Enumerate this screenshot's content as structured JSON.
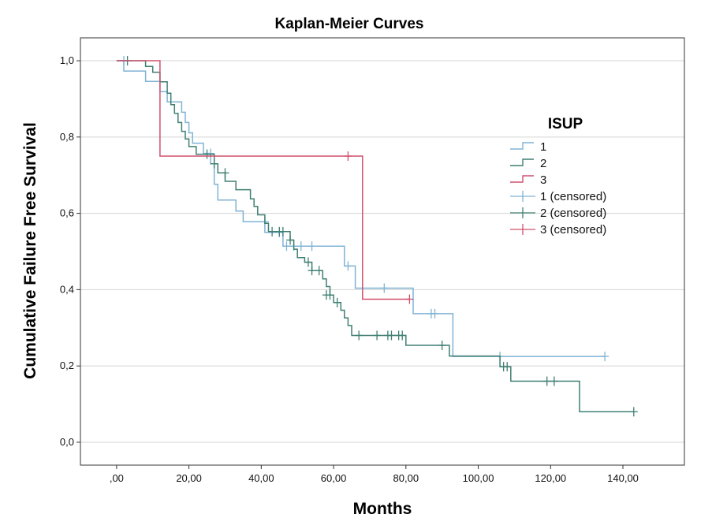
{
  "chart_data": {
    "type": "line",
    "step": true,
    "title": "Kaplan-Meier Curves",
    "xlabel": "Months",
    "ylabel": "Cumulative Failure Free Survival",
    "xlim": [
      -10,
      157
    ],
    "ylim": [
      -0.06,
      1.06
    ],
    "x_ticks": [
      0,
      20,
      40,
      60,
      80,
      100,
      120,
      140
    ],
    "x_tick_labels": [
      ",00",
      "20,00",
      "40,00",
      "60,00",
      "80,00",
      "100,00",
      "120,00",
      "140,00"
    ],
    "y_ticks": [
      0,
      0.2,
      0.4,
      0.6,
      0.8,
      1.0
    ],
    "y_tick_labels": [
      "0,0",
      "0,2",
      "0,4",
      "0,6",
      "0,8",
      "1,0"
    ],
    "grid": "horizontal",
    "legend": {
      "title": "ISUP",
      "placement": "right",
      "entries": [
        "1",
        "2",
        "3",
        "1 (censored)",
        "2 (censored)",
        "3 (censored)"
      ]
    },
    "series": [
      {
        "name": "1",
        "color": "#7fb3d5",
        "points": [
          [
            0,
            1.0
          ],
          [
            2,
            1.0
          ],
          [
            2,
            0.973
          ],
          [
            8,
            0.973
          ],
          [
            8,
            0.946
          ],
          [
            12,
            0.946
          ],
          [
            12,
            0.919
          ],
          [
            14,
            0.919
          ],
          [
            14,
            0.892
          ],
          [
            18,
            0.892
          ],
          [
            18,
            0.865
          ],
          [
            19,
            0.865
          ],
          [
            19,
            0.838
          ],
          [
            20,
            0.838
          ],
          [
            20,
            0.811
          ],
          [
            21,
            0.811
          ],
          [
            21,
            0.784
          ],
          [
            24,
            0.784
          ],
          [
            24,
            0.757
          ],
          [
            26,
            0.757
          ],
          [
            26,
            0.73
          ],
          [
            27,
            0.73
          ],
          [
            27,
            0.676
          ],
          [
            28,
            0.676
          ],
          [
            28,
            0.635
          ],
          [
            33,
            0.635
          ],
          [
            33,
            0.606
          ],
          [
            35,
            0.606
          ],
          [
            35,
            0.578
          ],
          [
            41,
            0.578
          ],
          [
            41,
            0.55
          ],
          [
            46,
            0.55
          ],
          [
            46,
            0.514
          ],
          [
            63,
            0.514
          ],
          [
            63,
            0.462
          ],
          [
            66,
            0.462
          ],
          [
            66,
            0.404
          ],
          [
            82,
            0.404
          ],
          [
            82,
            0.337
          ],
          [
            93,
            0.337
          ],
          [
            93,
            0.225
          ],
          [
            135,
            0.225
          ]
        ],
        "censored": [
          [
            2,
            1.0
          ],
          [
            26,
            0.757
          ],
          [
            41,
            0.578
          ],
          [
            45,
            0.55
          ],
          [
            47,
            0.514
          ],
          [
            49,
            0.514
          ],
          [
            51,
            0.514
          ],
          [
            54,
            0.514
          ],
          [
            64,
            0.462
          ],
          [
            74,
            0.404
          ],
          [
            87,
            0.337
          ],
          [
            88,
            0.337
          ],
          [
            106,
            0.225
          ],
          [
            135,
            0.225
          ]
        ]
      },
      {
        "name": "2",
        "color": "#3f7f72",
        "points": [
          [
            0,
            1.0
          ],
          [
            8,
            1.0
          ],
          [
            8,
            0.985
          ],
          [
            10,
            0.985
          ],
          [
            10,
            0.97
          ],
          [
            12,
            0.97
          ],
          [
            12,
            0.945
          ],
          [
            14,
            0.945
          ],
          [
            14,
            0.915
          ],
          [
            15,
            0.915
          ],
          [
            15,
            0.885
          ],
          [
            16,
            0.885
          ],
          [
            16,
            0.862
          ],
          [
            17,
            0.862
          ],
          [
            17,
            0.838
          ],
          [
            18,
            0.838
          ],
          [
            18,
            0.815
          ],
          [
            19,
            0.815
          ],
          [
            19,
            0.795
          ],
          [
            20,
            0.795
          ],
          [
            20,
            0.775
          ],
          [
            22,
            0.775
          ],
          [
            22,
            0.755
          ],
          [
            27,
            0.755
          ],
          [
            27,
            0.73
          ],
          [
            28,
            0.73
          ],
          [
            28,
            0.706
          ],
          [
            30,
            0.706
          ],
          [
            30,
            0.684
          ],
          [
            33,
            0.684
          ],
          [
            33,
            0.662
          ],
          [
            37,
            0.662
          ],
          [
            37,
            0.638
          ],
          [
            38,
            0.638
          ],
          [
            38,
            0.618
          ],
          [
            39,
            0.618
          ],
          [
            39,
            0.596
          ],
          [
            41,
            0.596
          ],
          [
            41,
            0.574
          ],
          [
            42,
            0.574
          ],
          [
            42,
            0.552
          ],
          [
            48,
            0.552
          ],
          [
            48,
            0.53
          ],
          [
            49,
            0.53
          ],
          [
            49,
            0.506
          ],
          [
            50,
            0.506
          ],
          [
            50,
            0.484
          ],
          [
            52,
            0.484
          ],
          [
            52,
            0.472
          ],
          [
            54,
            0.472
          ],
          [
            54,
            0.45
          ],
          [
            57,
            0.45
          ],
          [
            57,
            0.428
          ],
          [
            58,
            0.428
          ],
          [
            58,
            0.408
          ],
          [
            59,
            0.408
          ],
          [
            59,
            0.386
          ],
          [
            60,
            0.386
          ],
          [
            60,
            0.366
          ],
          [
            62,
            0.366
          ],
          [
            62,
            0.346
          ],
          [
            63,
            0.346
          ],
          [
            63,
            0.326
          ],
          [
            64,
            0.326
          ],
          [
            64,
            0.306
          ],
          [
            65,
            0.306
          ],
          [
            65,
            0.28
          ],
          [
            80,
            0.28
          ],
          [
            80,
            0.254
          ],
          [
            92,
            0.254
          ],
          [
            92,
            0.226
          ],
          [
            106,
            0.226
          ],
          [
            106,
            0.198
          ],
          [
            109,
            0.198
          ],
          [
            109,
            0.16
          ],
          [
            128,
            0.16
          ],
          [
            128,
            0.08
          ],
          [
            143,
            0.08
          ]
        ],
        "censored": [
          [
            3,
            1.0
          ],
          [
            25,
            0.755
          ],
          [
            27,
            0.73
          ],
          [
            30,
            0.706
          ],
          [
            43,
            0.552
          ],
          [
            45,
            0.552
          ],
          [
            46,
            0.552
          ],
          [
            48,
            0.53
          ],
          [
            53,
            0.472
          ],
          [
            54,
            0.45
          ],
          [
            56,
            0.45
          ],
          [
            58,
            0.386
          ],
          [
            59,
            0.386
          ],
          [
            61,
            0.366
          ],
          [
            67,
            0.28
          ],
          [
            72,
            0.28
          ],
          [
            75,
            0.28
          ],
          [
            76,
            0.28
          ],
          [
            78,
            0.28
          ],
          [
            79,
            0.28
          ],
          [
            90,
            0.254
          ],
          [
            107,
            0.198
          ],
          [
            108,
            0.198
          ],
          [
            119,
            0.16
          ],
          [
            121,
            0.16
          ],
          [
            143,
            0.08
          ]
        ]
      },
      {
        "name": "3",
        "color": "#d0506e",
        "points": [
          [
            0,
            1.0
          ],
          [
            12,
            1.0
          ],
          [
            12,
            0.75
          ],
          [
            68,
            0.75
          ],
          [
            68,
            0.375
          ],
          [
            81,
            0.375
          ]
        ],
        "censored": [
          [
            64,
            0.75
          ],
          [
            81,
            0.375
          ]
        ]
      }
    ]
  }
}
